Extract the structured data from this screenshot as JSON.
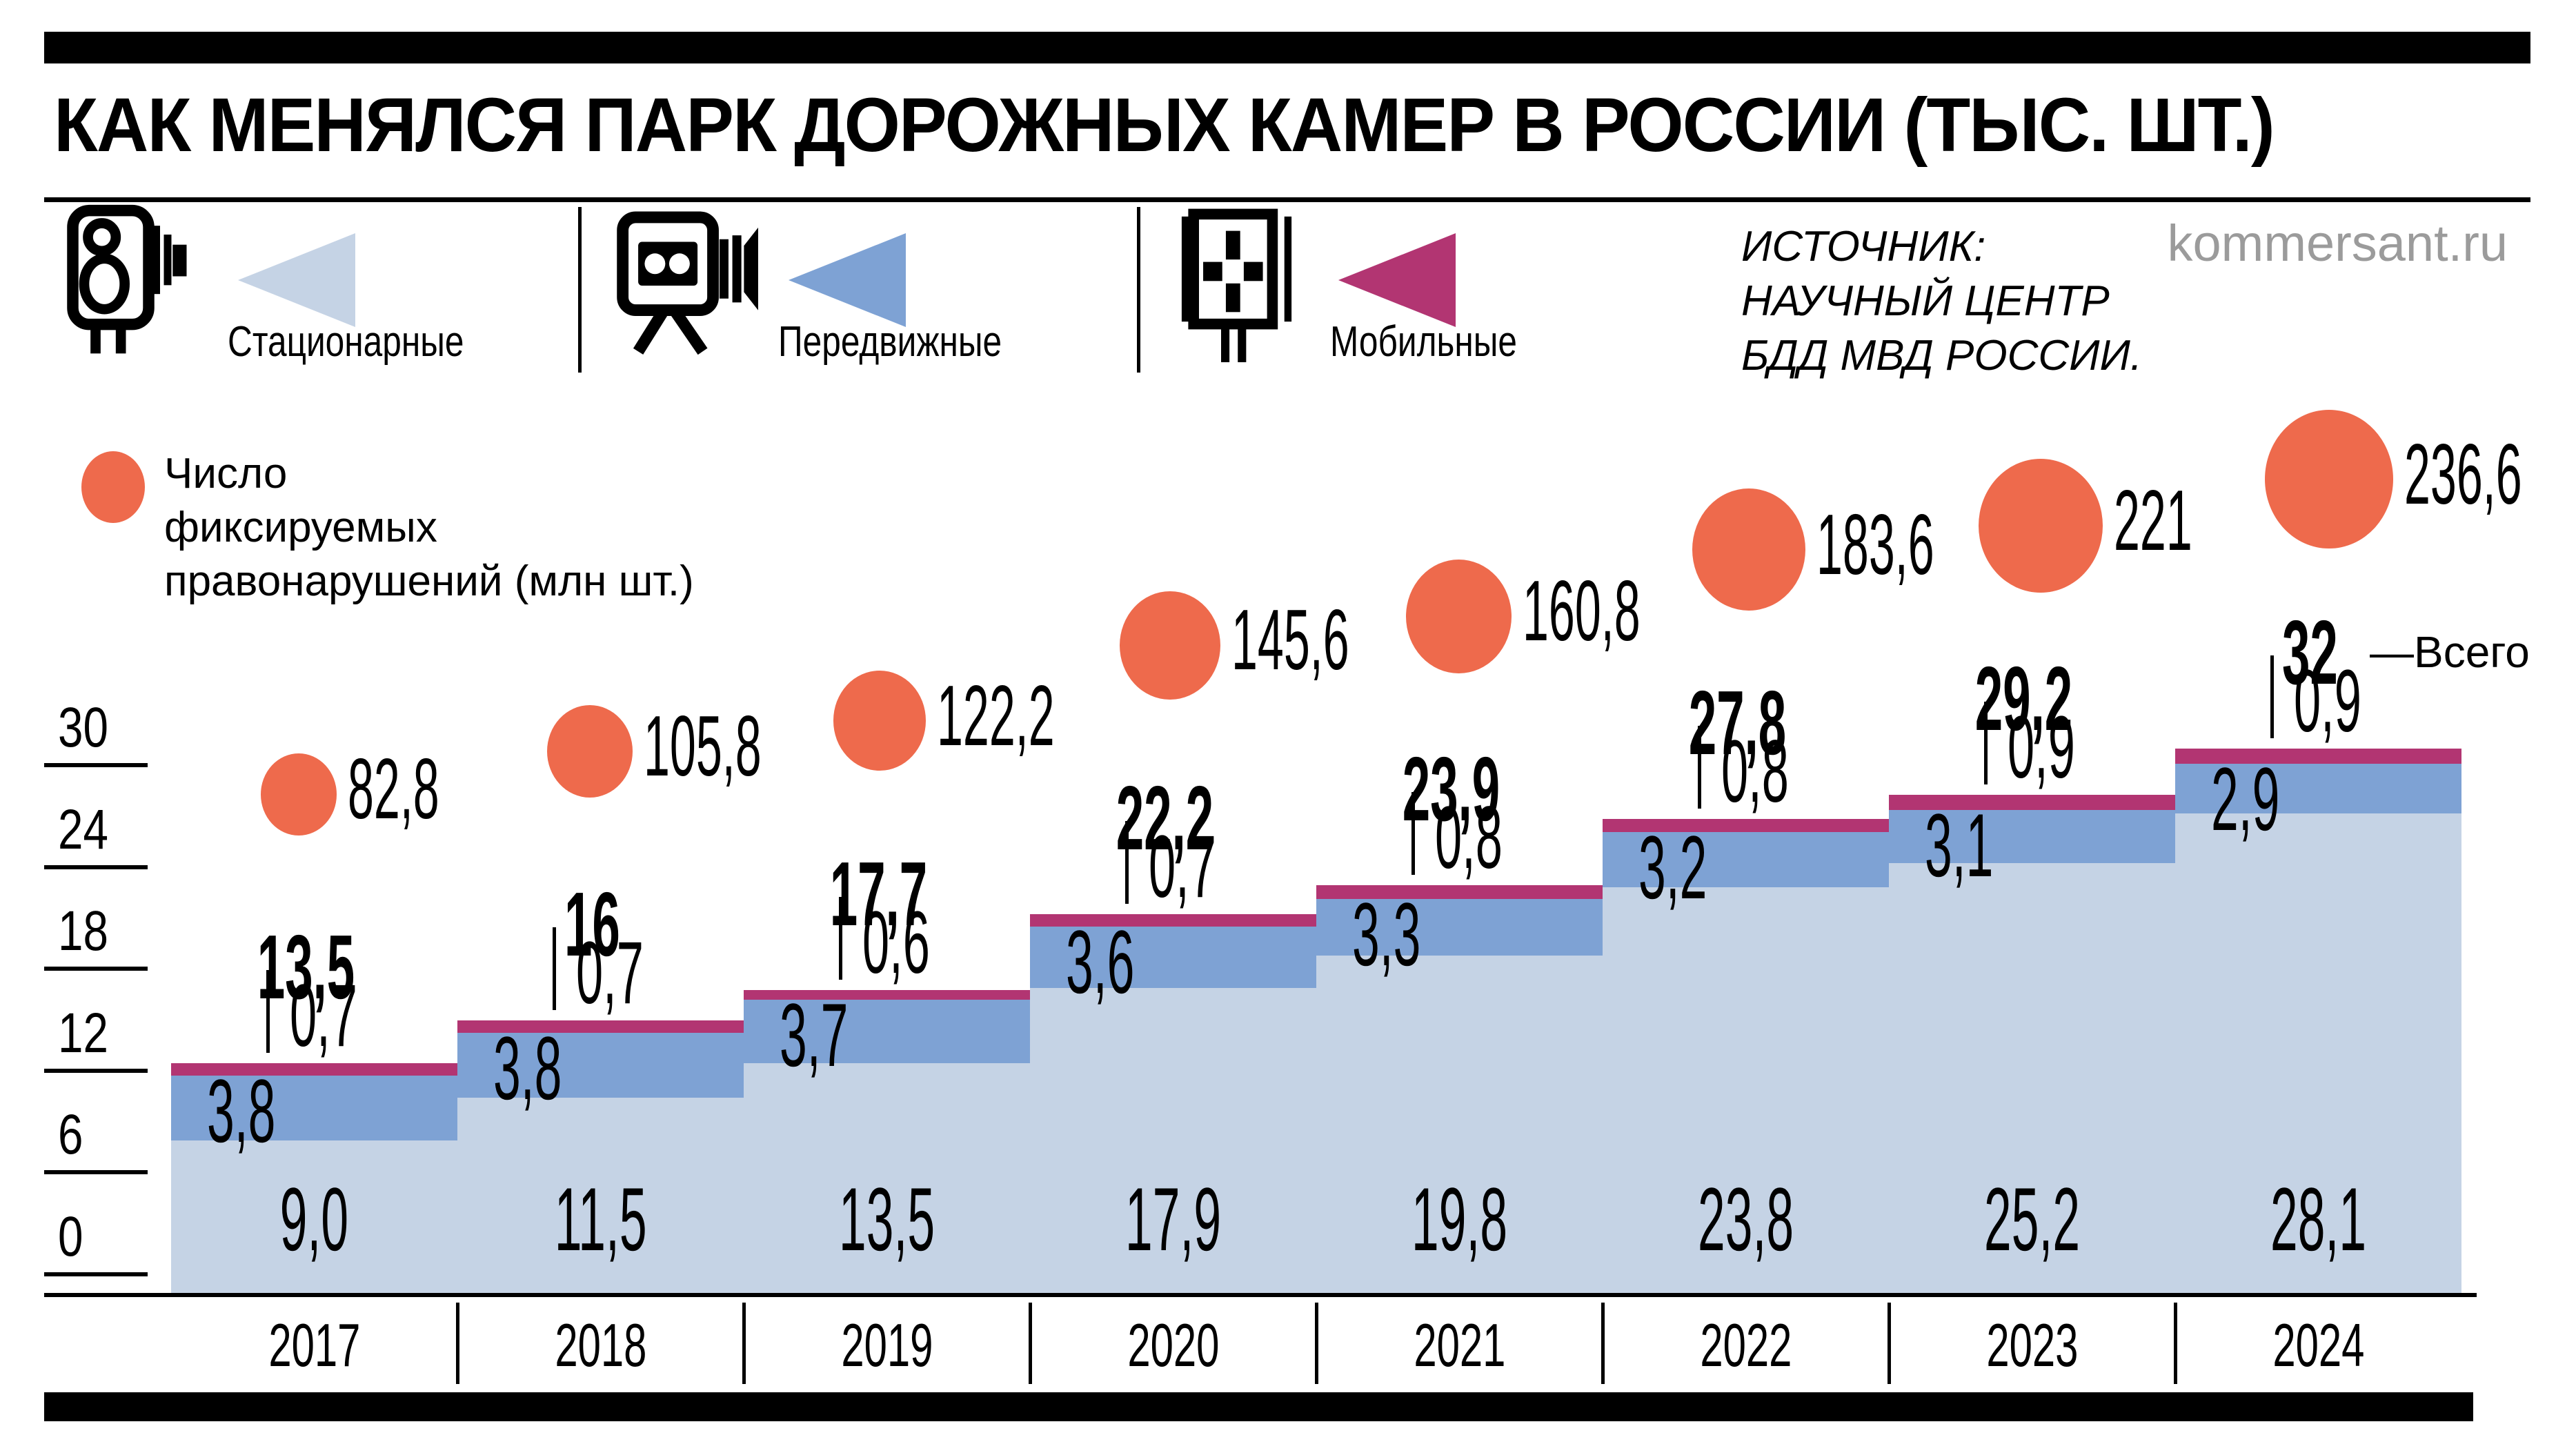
{
  "title": "КАК МЕНЯЛСЯ ПАРК ДОРОЖНЫХ КАМЕР В РОССИИ (ТЫС. ШТ.)",
  "brand": "kommersant.ru",
  "source": {
    "lines": [
      "ИСТОЧНИК:",
      "НАУЧНЫЙ ЦЕНТР",
      "БДД МВД РОССИИ."
    ]
  },
  "legend": {
    "items": [
      {
        "id": "stationary",
        "label": "Стационарные",
        "color": "#c5d3e5",
        "icon": "speed-camera-icon"
      },
      {
        "id": "portable",
        "label": "Передвижные",
        "color": "#7ea2d4",
        "icon": "video-camera-icon"
      },
      {
        "id": "mobile",
        "label": "Мобильные",
        "color": "#b23572",
        "icon": "mobile-camera-icon"
      }
    ],
    "violations": {
      "lines": [
        "Число",
        "фиксируемых",
        "правонарушений (млн шт.)"
      ],
      "color": "#ee6a4c"
    }
  },
  "chart_data": {
    "type": "area",
    "stacked": true,
    "grid": false,
    "legend_position": "top",
    "units": "тыс. шт.",
    "categories": [
      "2017",
      "2018",
      "2019",
      "2020",
      "2021",
      "2022",
      "2023",
      "2024"
    ],
    "series": [
      {
        "name": "Стационарные",
        "color": "#c5d3e5",
        "values": [
          9.0,
          11.5,
          13.5,
          17.9,
          19.8,
          23.8,
          25.2,
          28.1
        ],
        "labels": [
          "9,0",
          "11,5",
          "13,5",
          "17,9",
          "19,8",
          "23,8",
          "25,2",
          "28,1"
        ]
      },
      {
        "name": "Передвижные",
        "color": "#7ea2d4",
        "values": [
          3.8,
          3.8,
          3.7,
          3.6,
          3.3,
          3.2,
          3.1,
          2.9
        ],
        "labels": [
          "3,8",
          "3,8",
          "3,7",
          "3,6",
          "3,3",
          "3,2",
          "3,1",
          "2,9"
        ]
      },
      {
        "name": "Мобильные",
        "color": "#b23572",
        "values": [
          0.7,
          0.7,
          0.6,
          0.7,
          0.8,
          0.8,
          0.9,
          0.9
        ],
        "labels": [
          "0,7",
          "0,7",
          "0,6",
          "0,7",
          "0,8",
          "0,8",
          "0,9",
          "0,9"
        ]
      }
    ],
    "totals": {
      "values": [
        13.5,
        16,
        17.7,
        22.2,
        23.9,
        27.8,
        29.2,
        32
      ],
      "labels": [
        "13,5",
        "16",
        "17,7",
        "22,2",
        "23,9",
        "27,8",
        "29,2",
        "32"
      ],
      "annotation": "—Всего"
    },
    "violations": {
      "name": "Число фиксируемых правонарушений (млн шт.)",
      "color": "#ee6a4c",
      "values": [
        82.8,
        105.8,
        122.2,
        145.6,
        160.8,
        183.6,
        221,
        236.6
      ],
      "labels": [
        "82,8",
        "105,8",
        "122,2",
        "145,6",
        "160,8",
        "183,6",
        "221",
        "236,6"
      ]
    },
    "y_axis": {
      "ticks": [
        0,
        6,
        12,
        18,
        24,
        30
      ],
      "max": 32
    }
  }
}
